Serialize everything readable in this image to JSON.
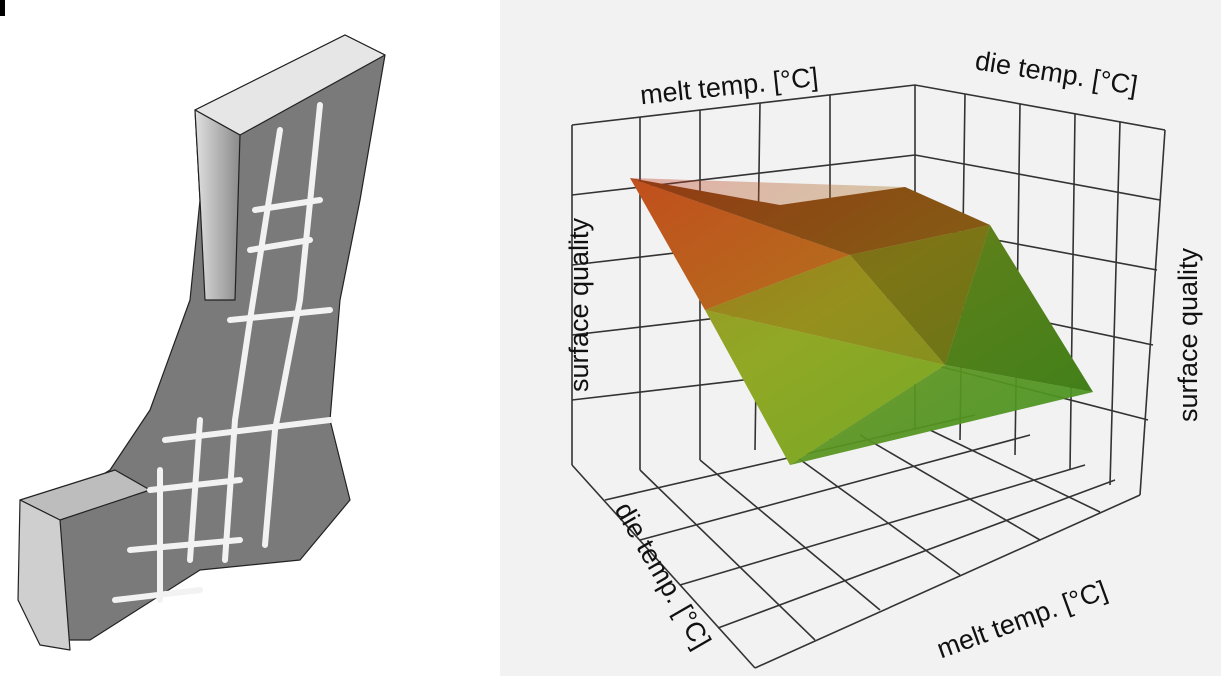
{
  "right_panel": {
    "axis_labels": {
      "top_left": "melt temp. [°C]",
      "top_right": "die temp. [°C]",
      "left": "surface quality",
      "right": "surface quality",
      "bottom_left": "die temp. [°C]",
      "bottom_right": "melt temp. [°C]"
    }
  }
}
